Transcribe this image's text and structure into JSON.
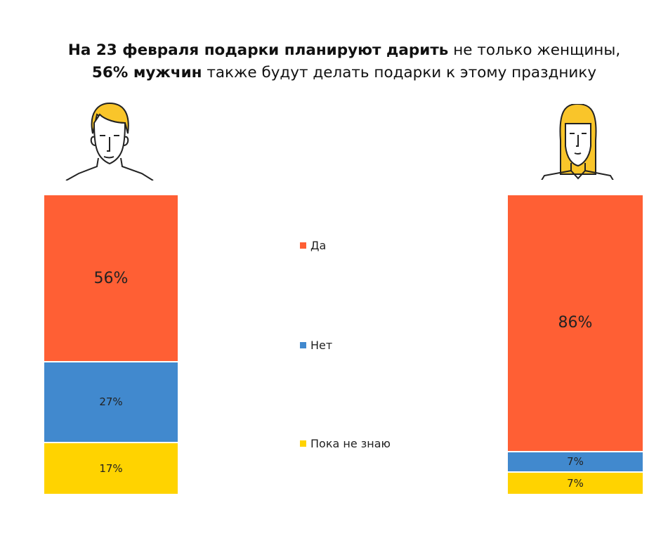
{
  "title": {
    "line1_bold": "На 23 февраля подарки планируют дарить",
    "line1_normal": " не только женщины,",
    "line2_bold": "56% мужчин",
    "line2_normal": " также будут делать подарки к этому празднику"
  },
  "chart_data": {
    "type": "stacked-bar",
    "categories": [
      "men-icon",
      "women-icon"
    ],
    "series": [
      {
        "name": "Да",
        "color": "#ff5f34",
        "values": [
          56,
          86
        ]
      },
      {
        "name": "Нет",
        "color": "#4189ce",
        "values": [
          27,
          7
        ]
      },
      {
        "name": "Пока не знаю",
        "color": "#ffd300",
        "values": [
          17,
          7
        ]
      }
    ],
    "labels": [
      [
        "56%",
        "27%",
        "17%"
      ],
      [
        "86%",
        "7%",
        "7%"
      ]
    ],
    "ylim": [
      0,
      100
    ],
    "legend": "center"
  }
}
